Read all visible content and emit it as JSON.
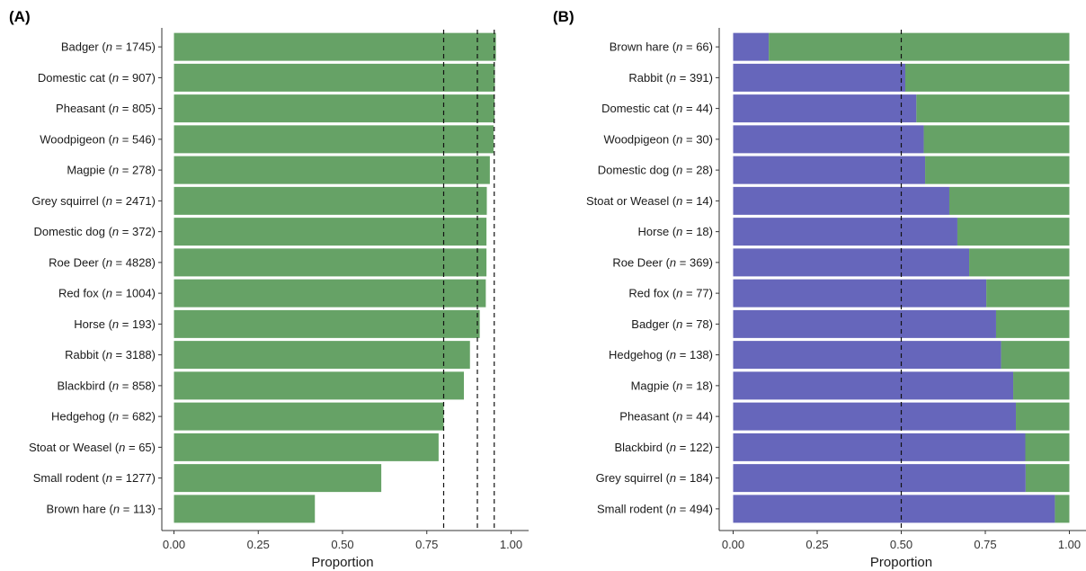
{
  "chart_data": [
    {
      "type": "bar",
      "orientation": "horizontal",
      "panel_label": "(A)",
      "xlabel": "Proportion",
      "ylabel": "",
      "xlim": [
        0,
        1
      ],
      "xticks": [
        "0.00",
        "0.25",
        "0.50",
        "0.75",
        "1.00"
      ],
      "reference_lines": [
        0.8,
        0.9,
        0.95
      ],
      "categories": [
        {
          "name": "Badger",
          "n_label": "n",
          "n_value": "= 1745"
        },
        {
          "name": "Domestic cat",
          "n_label": "n",
          "n_value": "= 907"
        },
        {
          "name": "Pheasant",
          "n_label": "n",
          "n_value": "= 805"
        },
        {
          "name": "Woodpigeon",
          "n_label": "n",
          "n_value": "= 546"
        },
        {
          "name": "Magpie",
          "n_label": "n",
          "n_value": "= 278"
        },
        {
          "name": "Grey squirrel",
          "n_label": "n",
          "n_value": "= 2471"
        },
        {
          "name": "Domestic dog",
          "n_label": "n",
          "n_value": "= 372"
        },
        {
          "name": "Roe Deer",
          "n_label": "n",
          "n_value": "= 4828"
        },
        {
          "name": "Red fox",
          "n_label": "n",
          "n_value": "= 1004"
        },
        {
          "name": "Horse",
          "n_label": "n",
          "n_value": "= 193"
        },
        {
          "name": "Rabbit",
          "n_label": "n",
          "n_value": "= 3188"
        },
        {
          "name": "Blackbird",
          "n_label": "n",
          "n_value": "= 858"
        },
        {
          "name": "Hedgehog",
          "n_label": "n",
          "n_value": "= 682"
        },
        {
          "name": "Stoat or Weasel",
          "n_label": "n",
          "n_value": "= 65"
        },
        {
          "name": "Small rodent",
          "n_label": "n",
          "n_value": "= 1277"
        },
        {
          "name": "Brown hare",
          "n_label": "n",
          "n_value": "= 113"
        }
      ],
      "series": [
        {
          "color": "#66a266",
          "values": [
            0.955,
            0.952,
            0.951,
            0.948,
            0.937,
            0.928,
            0.927,
            0.927,
            0.925,
            0.907,
            0.878,
            0.86,
            0.8,
            0.785,
            0.615,
            0.418
          ]
        }
      ]
    },
    {
      "type": "bar",
      "orientation": "horizontal",
      "stacked": true,
      "panel_label": "(B)",
      "xlabel": "Proportion",
      "ylabel": "",
      "xlim": [
        0,
        1
      ],
      "xticks": [
        "0.00",
        "0.25",
        "0.50",
        "0.75",
        "1.00"
      ],
      "reference_lines": [
        0.5
      ],
      "categories": [
        {
          "name": "Brown hare",
          "n_label": "n",
          "n_value": "= 66"
        },
        {
          "name": "Rabbit",
          "n_label": "n",
          "n_value": "= 391"
        },
        {
          "name": "Domestic cat",
          "n_label": "n",
          "n_value": "= 44"
        },
        {
          "name": "Woodpigeon",
          "n_label": "n",
          "n_value": "= 30"
        },
        {
          "name": "Domestic dog",
          "n_label": "n",
          "n_value": "= 28"
        },
        {
          "name": "Stoat or Weasel",
          "n_label": "n",
          "n_value": "= 14"
        },
        {
          "name": "Horse",
          "n_label": "n",
          "n_value": "= 18"
        },
        {
          "name": "Roe Deer",
          "n_label": "n",
          "n_value": "= 369"
        },
        {
          "name": "Red fox",
          "n_label": "n",
          "n_value": "= 77"
        },
        {
          "name": "Badger",
          "n_label": "n",
          "n_value": "= 78"
        },
        {
          "name": "Hedgehog",
          "n_label": "n",
          "n_value": "= 138"
        },
        {
          "name": "Magpie",
          "n_label": "n",
          "n_value": "= 18"
        },
        {
          "name": "Pheasant",
          "n_label": "n",
          "n_value": "= 44"
        },
        {
          "name": "Blackbird",
          "n_label": "n",
          "n_value": "= 122"
        },
        {
          "name": "Grey squirrel",
          "n_label": "n",
          "n_value": "= 184"
        },
        {
          "name": "Small rodent",
          "n_label": "n",
          "n_value": "= 494"
        }
      ],
      "series": [
        {
          "color": "#6666bb",
          "values": [
            0.106,
            0.512,
            0.545,
            0.567,
            0.571,
            0.643,
            0.667,
            0.702,
            0.753,
            0.782,
            0.797,
            0.833,
            0.841,
            0.869,
            0.87,
            0.957
          ]
        },
        {
          "color": "#66a266",
          "values": [
            0.894,
            0.488,
            0.455,
            0.433,
            0.429,
            0.357,
            0.333,
            0.298,
            0.247,
            0.218,
            0.203,
            0.167,
            0.159,
            0.131,
            0.13,
            0.043
          ]
        }
      ]
    }
  ]
}
